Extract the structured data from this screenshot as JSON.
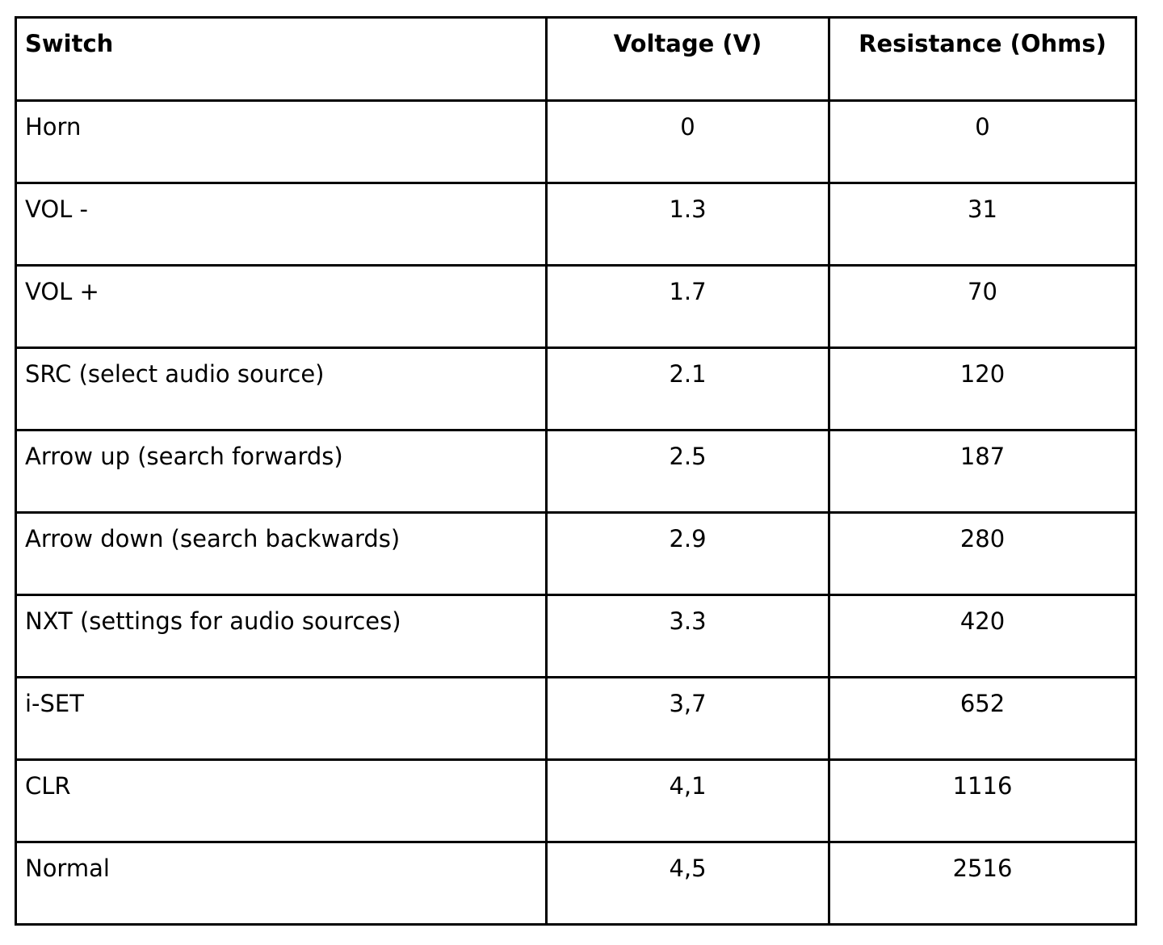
{
  "table": {
    "columns": [
      {
        "key": "switch",
        "label": "Switch"
      },
      {
        "key": "voltage",
        "label": "Voltage (V)"
      },
      {
        "key": "resistance",
        "label": "Resistance (Ohms)"
      }
    ],
    "rows": [
      {
        "switch": "Horn",
        "voltage": "0",
        "resistance": "0"
      },
      {
        "switch": "VOL -",
        "voltage": "1.3",
        "resistance": "31"
      },
      {
        "switch": "VOL +",
        "voltage": "1.7",
        "resistance": "70"
      },
      {
        "switch": "SRC (select audio source)",
        "voltage": "2.1",
        "resistance": "120"
      },
      {
        "switch": "Arrow up (search forwards)",
        "voltage": "2.5",
        "resistance": "187"
      },
      {
        "switch": "Arrow down (search backwards)",
        "voltage": "2.9",
        "resistance": "280"
      },
      {
        "switch": "NXT (settings for audio sources)",
        "voltage": "3.3",
        "resistance": "420"
      },
      {
        "switch": "i-SET",
        "voltage": "3,7",
        "resistance": "652"
      },
      {
        "switch": "CLR",
        "voltage": "4,1",
        "resistance": "1116"
      },
      {
        "switch": "Normal",
        "voltage": "4,5",
        "resistance": "2516"
      }
    ]
  },
  "colors": {
    "background": "#ffffff",
    "border": "#000000",
    "text": "#000000"
  }
}
